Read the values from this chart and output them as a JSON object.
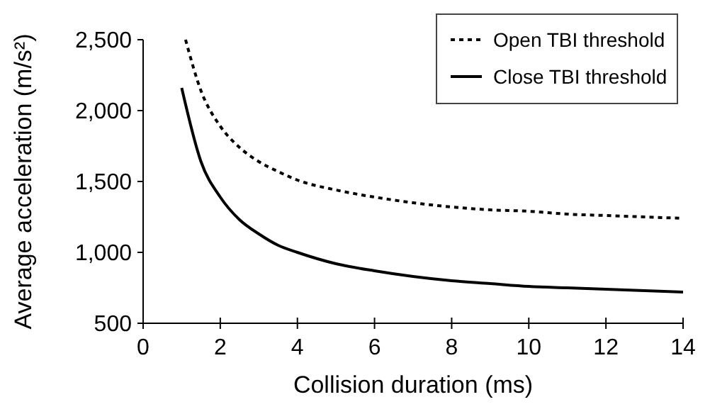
{
  "chart_data": {
    "type": "line",
    "xlabel": "Collision duration (ms)",
    "ylabel": "Average acceleration (m/s²)",
    "xlim": [
      0,
      14
    ],
    "xticks": [
      0,
      2,
      4,
      6,
      8,
      10,
      12,
      14
    ],
    "ylim": [
      500,
      2500
    ],
    "yticks": [
      {
        "value": 500,
        "label": "500"
      },
      {
        "value": 1000,
        "label": "1,000"
      },
      {
        "value": 1500,
        "label": "1,500"
      },
      {
        "value": 2000,
        "label": "2,000"
      },
      {
        "value": 2500,
        "label": "2,500"
      }
    ],
    "grid": false,
    "legend": "top right",
    "marker": "none",
    "series": [
      {
        "name": "Open TBI threshold",
        "color": "#000000",
        "line_style": "dotted",
        "x": [
          1.1,
          1.5,
          2,
          2.5,
          3,
          3.5,
          4,
          5,
          6,
          7,
          8,
          9,
          10,
          11,
          12,
          13,
          14
        ],
        "values": [
          2500,
          2140,
          1890,
          1740,
          1640,
          1570,
          1510,
          1440,
          1390,
          1350,
          1320,
          1300,
          1290,
          1270,
          1260,
          1250,
          1240
        ]
      },
      {
        "name": "Close TBI threshold",
        "color": "#000000",
        "line_style": "solid",
        "x": [
          1,
          1.5,
          2,
          2.5,
          3,
          3.5,
          4,
          5,
          6,
          7,
          8,
          9,
          10,
          11,
          12,
          13,
          14
        ],
        "values": [
          2160,
          1640,
          1390,
          1230,
          1130,
          1050,
          1000,
          920,
          870,
          830,
          800,
          780,
          760,
          750,
          740,
          730,
          720
        ]
      }
    ]
  }
}
